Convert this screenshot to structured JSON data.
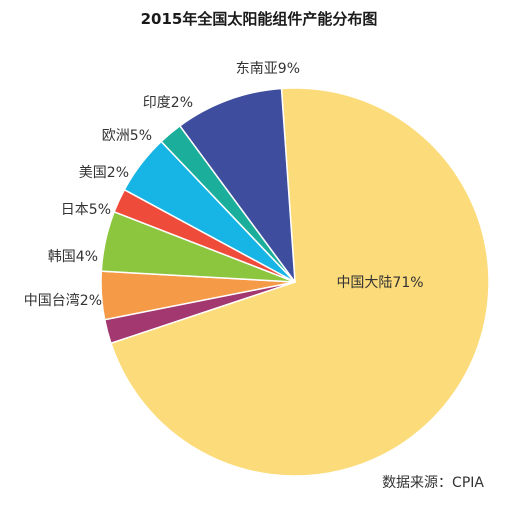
{
  "chart_data": {
    "type": "pie",
    "title": "2015年全国太阳能组件产能分布图",
    "source": "数据来源：CPIA",
    "slices": [
      {
        "label": "中国大陆71%",
        "value": 71,
        "color": "#FCDB7A"
      },
      {
        "label": "中国台湾2%",
        "value": 2,
        "color": "#A2386F"
      },
      {
        "label": "韩国4%",
        "value": 4,
        "color": "#F59B47"
      },
      {
        "label": "日本5%",
        "value": 5,
        "color": "#8CC63E"
      },
      {
        "label": "美国2%",
        "value": 2,
        "color": "#EE4B3A"
      },
      {
        "label": "欧洲5%",
        "value": 5,
        "color": "#17B5E5"
      },
      {
        "label": "印度2%",
        "value": 2,
        "color": "#1AAE9B"
      },
      {
        "label": "东南亚9%",
        "value": 9,
        "color": "#3E4D9E"
      }
    ]
  }
}
